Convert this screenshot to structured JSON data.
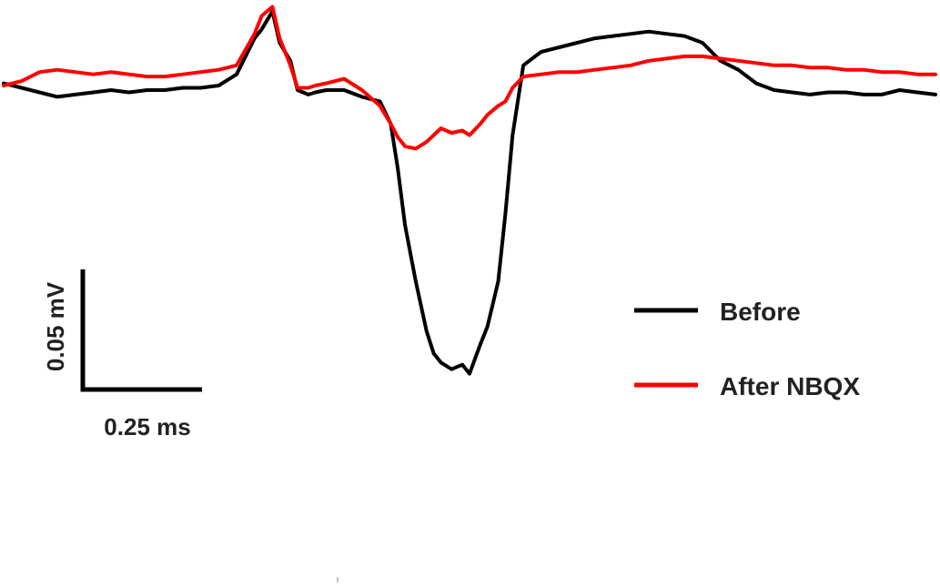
{
  "chart_data": {
    "type": "line",
    "title": "",
    "xlabel": "",
    "ylabel": "",
    "x_unit": "ms",
    "y_unit": "mV",
    "xlim": [
      0,
      2.6
    ],
    "ylim": [
      -0.155,
      0.033
    ],
    "grid": false,
    "axes_visible": false,
    "legend_position": "right",
    "scale_bar": {
      "x_value": 0.25,
      "x_label": "0.25 ms",
      "y_value": 0.05,
      "y_label": "0.05 mV"
    },
    "x": [
      0.0,
      0.05,
      0.1,
      0.15,
      0.2,
      0.25,
      0.3,
      0.35,
      0.4,
      0.45,
      0.5,
      0.55,
      0.6,
      0.65,
      0.7,
      0.72,
      0.75,
      0.77,
      0.8,
      0.82,
      0.85,
      0.87,
      0.9,
      0.95,
      1.0,
      1.05,
      1.08,
      1.1,
      1.12,
      1.15,
      1.18,
      1.2,
      1.22,
      1.25,
      1.28,
      1.3,
      1.33,
      1.35,
      1.38,
      1.4,
      1.42,
      1.45,
      1.5,
      1.55,
      1.6,
      1.65,
      1.7,
      1.75,
      1.8,
      1.85,
      1.9,
      1.95,
      2.0,
      2.05,
      2.1,
      2.15,
      2.2,
      2.25,
      2.3,
      2.35,
      2.4,
      2.45,
      2.5,
      2.55,
      2.6
    ],
    "series": [
      {
        "name": "Before",
        "color": "#000000",
        "values": [
          -0.002,
          -0.004,
          -0.006,
          -0.008,
          -0.007,
          -0.006,
          -0.005,
          -0.006,
          -0.005,
          -0.005,
          -0.004,
          -0.004,
          -0.003,
          0.002,
          0.018,
          0.022,
          0.03,
          0.016,
          0.008,
          -0.005,
          -0.007,
          -0.006,
          -0.005,
          -0.005,
          -0.008,
          -0.01,
          -0.02,
          -0.04,
          -0.065,
          -0.09,
          -0.112,
          -0.122,
          -0.126,
          -0.129,
          -0.127,
          -0.131,
          -0.118,
          -0.11,
          -0.09,
          -0.06,
          -0.025,
          0.006,
          0.012,
          0.014,
          0.016,
          0.018,
          0.019,
          0.02,
          0.021,
          0.02,
          0.019,
          0.016,
          0.008,
          0.004,
          -0.002,
          -0.005,
          -0.006,
          -0.007,
          -0.006,
          -0.006,
          -0.007,
          -0.007,
          -0.005,
          -0.006,
          -0.007
        ]
      },
      {
        "name": "After NBQX",
        "color": "#ff0000",
        "values": [
          -0.003,
          -0.001,
          0.003,
          0.004,
          0.003,
          0.002,
          0.003,
          0.002,
          0.001,
          0.001,
          0.002,
          0.003,
          0.004,
          0.006,
          0.02,
          0.028,
          0.032,
          0.018,
          0.006,
          -0.004,
          -0.004,
          -0.003,
          -0.002,
          0.0,
          -0.005,
          -0.012,
          -0.02,
          -0.026,
          -0.03,
          -0.031,
          -0.028,
          -0.025,
          -0.022,
          -0.024,
          -0.023,
          -0.025,
          -0.02,
          -0.016,
          -0.012,
          -0.01,
          -0.004,
          0.001,
          0.002,
          0.003,
          0.003,
          0.004,
          0.005,
          0.006,
          0.008,
          0.009,
          0.01,
          0.01,
          0.009,
          0.008,
          0.007,
          0.006,
          0.006,
          0.005,
          0.005,
          0.004,
          0.004,
          0.003,
          0.003,
          0.002,
          0.002
        ]
      }
    ]
  }
}
